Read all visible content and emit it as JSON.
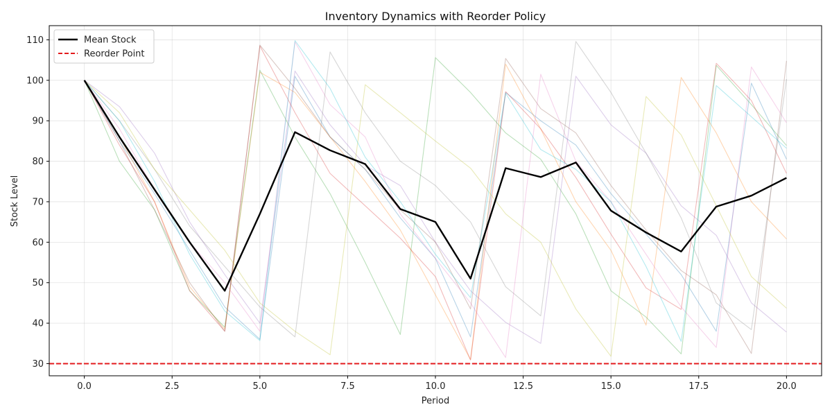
{
  "chart_data": {
    "type": "line",
    "title": "Inventory Dynamics with Reorder Policy",
    "xlabel": "Period",
    "ylabel": "Stock Level",
    "xlim": [
      -1,
      21
    ],
    "ylim": [
      27,
      113.5
    ],
    "x_ticks": [
      0,
      2.5,
      5,
      7.5,
      10,
      12.5,
      15,
      17.5,
      20
    ],
    "x_tick_labels": [
      "0.0",
      "2.5",
      "5.0",
      "7.5",
      "10.0",
      "12.5",
      "15.0",
      "17.5",
      "20.0"
    ],
    "y_ticks": [
      30,
      40,
      50,
      60,
      70,
      80,
      90,
      100,
      110
    ],
    "y_tick_labels": [
      "30",
      "40",
      "50",
      "60",
      "70",
      "80",
      "90",
      "100",
      "110"
    ],
    "grid": true,
    "legend_position": "top-left",
    "x": [
      0,
      1,
      2,
      3,
      4,
      5,
      6,
      7,
      8,
      9,
      10,
      11,
      12,
      13,
      14,
      15,
      16,
      17,
      18,
      19,
      20
    ],
    "mean_series": {
      "name": "Mean Stock",
      "color": "#000000",
      "values": [
        100,
        86,
        73,
        60,
        48,
        67,
        87.2,
        82.7,
        79.3,
        68.2,
        65,
        51,
        78.3,
        76.1,
        79.7,
        67.8,
        62.4,
        57.7,
        68.8,
        71.5,
        75.9
      ]
    },
    "reorder_point": {
      "name": "Reorder Point",
      "value": 30,
      "color": "#e31a1c"
    },
    "simulations": [
      {
        "color": "#1f77b4",
        "values": [
          100,
          85,
          72,
          58,
          44,
          36,
          101,
          86,
          78,
          66,
          56,
          36.6,
          97,
          90,
          84,
          72,
          62,
          52,
          38,
          99.3,
          80.5
        ]
      },
      {
        "color": "#ff7f0e",
        "values": [
          100,
          86,
          70,
          49,
          38.5,
          102,
          97,
          86,
          75,
          63,
          47,
          31,
          104,
          88,
          70,
          58,
          39.5,
          100.7,
          87,
          70,
          60.8
        ]
      },
      {
        "color": "#2ca02c",
        "values": [
          100,
          80,
          68,
          48,
          39,
          102.5,
          86,
          72,
          55,
          37.2,
          105.6,
          97,
          87,
          80.5,
          67,
          48,
          41.5,
          32.4,
          103.7,
          94,
          83.9
        ]
      },
      {
        "color": "#d62728",
        "values": [
          100,
          84,
          70,
          48,
          38,
          108.5,
          92,
          77,
          69,
          61,
          51.5,
          30.9,
          97.2,
          88,
          76,
          62,
          48.7,
          43.4,
          104.2,
          95,
          77
        ]
      },
      {
        "color": "#9467bd",
        "values": [
          100,
          93.5,
          82,
          65,
          52,
          40,
          102.3,
          89,
          79,
          74,
          60,
          48,
          40.2,
          35,
          101,
          89,
          82,
          69,
          61.7,
          45,
          37.8
        ]
      },
      {
        "color": "#8c564b",
        "values": [
          100,
          85,
          68,
          50,
          38,
          108.7,
          98,
          86,
          78,
          68,
          60,
          43.5,
          105.4,
          93,
          87,
          74,
          63,
          53,
          47,
          32.5,
          104.8
        ]
      },
      {
        "color": "#e377c2",
        "values": [
          100,
          88,
          73,
          60,
          50,
          38,
          109.5,
          94,
          86,
          67,
          56,
          45,
          31.5,
          101.5,
          80,
          70,
          57,
          44,
          34,
          103.3,
          89.5
        ]
      },
      {
        "color": "#7f7f7f",
        "values": [
          100,
          90,
          78,
          64,
          54,
          44,
          36.6,
          107,
          92,
          80,
          74,
          65,
          49,
          41.8,
          109.6,
          97,
          82,
          66,
          45,
          38.4,
          100.3
        ]
      },
      {
        "color": "#bcbd22",
        "values": [
          100,
          92,
          78,
          68,
          58,
          45,
          38,
          32.2,
          98.9,
          92,
          85,
          78.3,
          67,
          60,
          43.5,
          31.8,
          96,
          86.5,
          69,
          51.5,
          43.7
        ]
      },
      {
        "color": "#17becf",
        "values": [
          100,
          90,
          75,
          57,
          43,
          35.7,
          109.8,
          98,
          81,
          70,
          57,
          46.3,
          96.8,
          82.9,
          78,
          70,
          54,
          35.5,
          98.7,
          91,
          83.2
        ]
      }
    ]
  }
}
